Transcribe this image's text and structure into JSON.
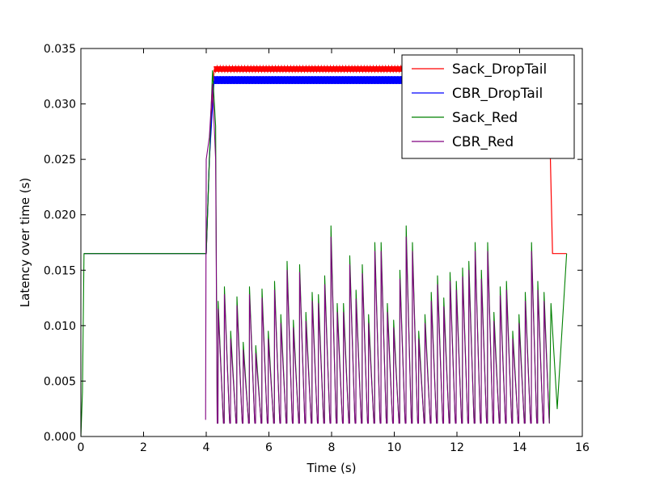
{
  "chart_data": {
    "type": "line",
    "title": "",
    "xlabel": "Time (s)",
    "ylabel": "Latency over time (s)",
    "xlim": [
      0,
      16
    ],
    "ylim": [
      0.0,
      0.035
    ],
    "x_ticks": [
      "0",
      "2",
      "4",
      "6",
      "8",
      "10",
      "12",
      "14",
      "16"
    ],
    "y_ticks": [
      "0.000",
      "0.005",
      "0.010",
      "0.015",
      "0.020",
      "0.025",
      "0.030",
      "0.035"
    ],
    "grid": false,
    "legend_position": "top-right",
    "series": [
      {
        "name": "Sack_DropTail",
        "color": "#ff0000",
        "description": "Constant 0.0165 s after start, ramps at ~4.1 s to a band around 0.0331-0.0333 s held until ~15.0 s, then drops to 0.0165 s",
        "points": [
          [
            0.1,
            0.0165
          ],
          [
            4.0,
            0.0165
          ],
          [
            4.1,
            0.025
          ],
          [
            4.25,
            0.0331
          ],
          [
            7.0,
            0.0331
          ],
          [
            10.0,
            0.0332
          ],
          [
            12.0,
            0.0332
          ],
          [
            14.8,
            0.0332
          ],
          [
            14.95,
            0.029
          ],
          [
            15.05,
            0.0165
          ],
          [
            15.5,
            0.0165
          ]
        ],
        "band": {
          "x_start": 4.25,
          "x_end": 15.0,
          "y_low": 0.0329,
          "y_high": 0.0334
        }
      },
      {
        "name": "CBR_DropTail",
        "color": "#0000ff",
        "description": "Constant 0.0165 s after start, ramps at ~4.1 s to a band around 0.0318-0.0325 s held until ~15.0 s",
        "points": [
          [
            0.1,
            0.0165
          ],
          [
            4.0,
            0.0165
          ],
          [
            4.1,
            0.025
          ],
          [
            4.25,
            0.0321
          ],
          [
            8.0,
            0.0321
          ],
          [
            12.0,
            0.0322
          ],
          [
            15.0,
            0.0322
          ]
        ],
        "band": {
          "x_start": 4.25,
          "x_end": 15.0,
          "y_low": 0.0318,
          "y_high": 0.0325
        }
      },
      {
        "name": "Sack_Red",
        "color": "#008000",
        "description": "Constant 0.0165 s from ~0.1 s to 4 s, spikes to ~0.033 s at ~4.2 s, then oscillates quickly between about 0.0012 s and 0.012-0.019 s until ~15 s, then rises back to 0.0165 s by 15.5 s",
        "points": [
          [
            0.0,
            0.0
          ],
          [
            0.05,
            0.004
          ],
          [
            0.1,
            0.0165
          ],
          [
            4.0,
            0.0165
          ],
          [
            4.1,
            0.025
          ],
          [
            4.2,
            0.033
          ],
          [
            4.3,
            0.028
          ],
          [
            4.38,
            0.002
          ],
          [
            15.0,
            0.012
          ],
          [
            15.2,
            0.0025
          ],
          [
            15.5,
            0.0165
          ]
        ],
        "oscillation": {
          "x_start": 4.35,
          "x_end": 14.95,
          "trough": 0.0012,
          "peaks": [
            0.0122,
            0.0135,
            0.0095,
            0.0126,
            0.0085,
            0.0135,
            0.0082,
            0.0133,
            0.0095,
            0.014,
            0.011,
            0.0158,
            0.0105,
            0.0155,
            0.0112,
            0.013,
            0.0128,
            0.0145,
            0.019,
            0.012,
            0.012,
            0.0163,
            0.0132,
            0.0155,
            0.011,
            0.0175,
            0.0175,
            0.012,
            0.0105,
            0.015,
            0.019,
            0.0175,
            0.0095,
            0.011,
            0.013,
            0.0145,
            0.0125,
            0.0148,
            0.014,
            0.0152,
            0.0158,
            0.0175,
            0.015,
            0.0175,
            0.0112,
            0.0135,
            0.014,
            0.0095,
            0.011,
            0.013,
            0.0175,
            0.014,
            0.013
          ]
        }
      },
      {
        "name": "CBR_Red",
        "color": "#800080",
        "description": "Starts at ~4.0 s near 0.0015 s, spikes to ~0.0318 s at ~4.2 s, then oscillates between about 0.0012 s and 0.011-0.018 s in step with Sack_Red until ~14.95 s",
        "points": [
          [
            3.98,
            0.0015
          ],
          [
            4.0,
            0.025
          ],
          [
            4.1,
            0.027
          ],
          [
            4.2,
            0.0318
          ],
          [
            4.3,
            0.025
          ],
          [
            4.38,
            0.0012
          ]
        ],
        "oscillation": {
          "x_start": 4.35,
          "x_end": 14.95,
          "trough": 0.0012,
          "peaks": [
            0.0115,
            0.0128,
            0.0088,
            0.0118,
            0.0078,
            0.0128,
            0.0075,
            0.0125,
            0.0088,
            0.0132,
            0.0102,
            0.015,
            0.0098,
            0.0148,
            0.0104,
            0.0122,
            0.012,
            0.0137,
            0.018,
            0.0112,
            0.0112,
            0.0155,
            0.0124,
            0.0147,
            0.0102,
            0.0167,
            0.0167,
            0.0112,
            0.0098,
            0.0142,
            0.018,
            0.0167,
            0.0088,
            0.0102,
            0.0122,
            0.0137,
            0.0117,
            0.014,
            0.0132,
            0.0144,
            0.015,
            0.0167,
            0.0142,
            0.0167,
            0.0104,
            0.0127,
            0.0132,
            0.0088,
            0.0102,
            0.0122,
            0.0167,
            0.0132,
            0.0122
          ]
        }
      }
    ]
  }
}
